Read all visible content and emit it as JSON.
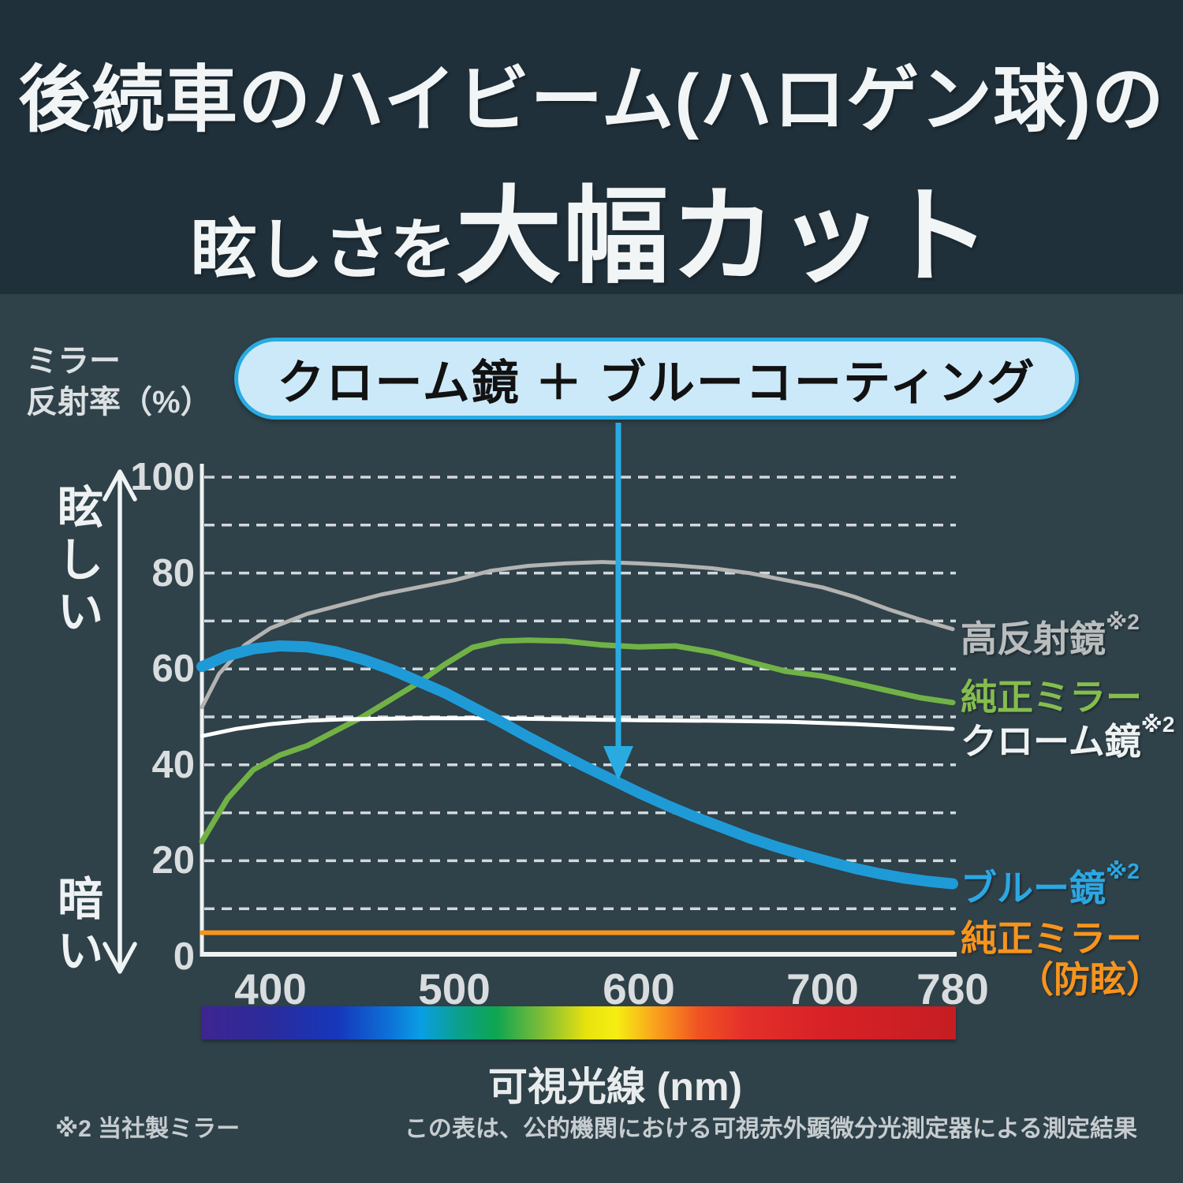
{
  "title": {
    "line1": "後続車のハイビーム(ハロゲン球)の",
    "line2_small": "眩しさを",
    "line2_large": "大幅カット"
  },
  "y_axis": {
    "unit_label": "ミラー\n反射率（%）",
    "top_label": "眩\nし\nい",
    "bottom_label": "暗\nい"
  },
  "callout": {
    "text": "クローム鏡 ＋ ブルーコーティング"
  },
  "x_axis": {
    "title": "可視光線 (nm)"
  },
  "legend": {
    "gray": {
      "label": "高反射鏡",
      "sup": "※2"
    },
    "green": {
      "label": "純正ミラー",
      "sup": ""
    },
    "white": {
      "label": "クローム鏡",
      "sup": "※2"
    },
    "blue": {
      "label": "ブルー鏡",
      "sup": "※2"
    },
    "orange": {
      "label": "純正ミラー",
      "sup": "",
      "line2": "（防眩）"
    }
  },
  "footnotes": {
    "left": "※2 当社製ミラー",
    "right": "この表は、公的機関における可視赤外顕微分光測定器による測定結果"
  },
  "colors": {
    "header_bg": "#20303a",
    "body_bg": "#2f4149",
    "accent_blue": "#29abe2",
    "pill_fill": "#cce9f9",
    "curve_gray": "#b3b3b1",
    "curve_green": "#71b246",
    "curve_white": "#ffffff",
    "curve_blue": "#1e9bd7",
    "curve_orange": "#f7941d"
  },
  "chart_data": {
    "type": "line",
    "xlabel": "可視光線 (nm)",
    "ylabel": "ミラー反射率（%）",
    "x_range": [
      360,
      780
    ],
    "ylim": [
      0,
      100
    ],
    "x_ticks": [
      400,
      500,
      600,
      700,
      780
    ],
    "y_ticks": [
      100,
      80,
      60,
      40,
      20,
      0
    ],
    "grid": "horizontal dashed every 10",
    "legend_position": "right of line ends",
    "series": [
      {
        "name": "高反射鏡※2",
        "color": "#b3b3b1",
        "width": 5,
        "points": [
          [
            360,
            52
          ],
          [
            370,
            59
          ],
          [
            385,
            65
          ],
          [
            400,
            68.5
          ],
          [
            420,
            71.5
          ],
          [
            440,
            73.5
          ],
          [
            460,
            75.5
          ],
          [
            480,
            77
          ],
          [
            500,
            78.5
          ],
          [
            520,
            80.5
          ],
          [
            540,
            81.5
          ],
          [
            560,
            82
          ],
          [
            580,
            82.3
          ],
          [
            600,
            82
          ],
          [
            620,
            81.6
          ],
          [
            640,
            81
          ],
          [
            660,
            80
          ],
          [
            680,
            78.5
          ],
          [
            700,
            77
          ],
          [
            720,
            75
          ],
          [
            740,
            72.5
          ],
          [
            760,
            70.3
          ],
          [
            780,
            68.3
          ]
        ]
      },
      {
        "name": "純正ミラー",
        "color": "#71b246",
        "width": 7,
        "points": [
          [
            360,
            24
          ],
          [
            375,
            33
          ],
          [
            390,
            39
          ],
          [
            405,
            42
          ],
          [
            420,
            44
          ],
          [
            435,
            47
          ],
          [
            450,
            50
          ],
          [
            465,
            53.5
          ],
          [
            480,
            57
          ],
          [
            495,
            61
          ],
          [
            510,
            64.5
          ],
          [
            525,
            65.8
          ],
          [
            540,
            66
          ],
          [
            560,
            65.8
          ],
          [
            580,
            65
          ],
          [
            600,
            64.6
          ],
          [
            620,
            64.8
          ],
          [
            640,
            63.5
          ],
          [
            660,
            61.5
          ],
          [
            680,
            59.5
          ],
          [
            700,
            58.5
          ],
          [
            720,
            57
          ],
          [
            740,
            55.5
          ],
          [
            760,
            54
          ],
          [
            780,
            53
          ]
        ]
      },
      {
        "name": "クローム鏡※2",
        "color": "#ffffff",
        "width": 5,
        "points": [
          [
            360,
            46
          ],
          [
            380,
            47.5
          ],
          [
            400,
            48.5
          ],
          [
            420,
            49.2
          ],
          [
            440,
            49.5
          ],
          [
            480,
            49.7
          ],
          [
            520,
            49.7
          ],
          [
            560,
            49.5
          ],
          [
            600,
            49.3
          ],
          [
            640,
            49.2
          ],
          [
            680,
            49
          ],
          [
            720,
            48.5
          ],
          [
            750,
            48
          ],
          [
            780,
            47.5
          ]
        ]
      },
      {
        "name": "ブルー鏡※2",
        "color": "#1e9bd7",
        "width": 14,
        "points": [
          [
            360,
            60.5
          ],
          [
            375,
            62.8
          ],
          [
            390,
            64.2
          ],
          [
            405,
            64.8
          ],
          [
            420,
            64.6
          ],
          [
            435,
            63.6
          ],
          [
            450,
            62
          ],
          [
            465,
            60
          ],
          [
            480,
            57.5
          ],
          [
            495,
            55
          ],
          [
            510,
            52
          ],
          [
            525,
            49
          ],
          [
            540,
            45.8
          ],
          [
            555,
            42.8
          ],
          [
            570,
            39.8
          ],
          [
            585,
            37
          ],
          [
            600,
            34.2
          ],
          [
            615,
            31.6
          ],
          [
            630,
            29.2
          ],
          [
            645,
            27
          ],
          [
            660,
            24.8
          ],
          [
            675,
            22.9
          ],
          [
            690,
            21.2
          ],
          [
            705,
            19.7
          ],
          [
            720,
            18.4
          ],
          [
            735,
            17.3
          ],
          [
            750,
            16.4
          ],
          [
            765,
            15.7
          ],
          [
            780,
            15.2
          ]
        ]
      },
      {
        "name": "純正ミラー（防眩）",
        "color": "#f7941d",
        "width": 6,
        "points": [
          [
            360,
            5
          ],
          [
            780,
            5
          ]
        ]
      }
    ],
    "annotation": {
      "text": "クローム鏡 ＋ ブルーコーティング",
      "arrow_points_to_series": "ブルー鏡※2",
      "arrow_x_nm": 588
    }
  }
}
